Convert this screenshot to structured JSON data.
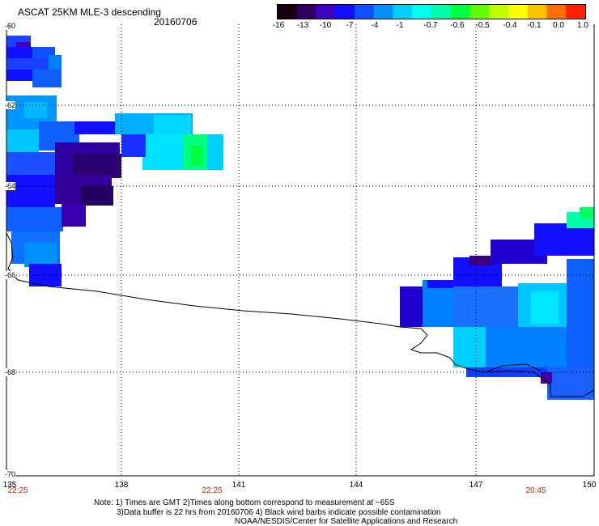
{
  "title": "ASCAT 25KM MLE-3 descending",
  "date": "20160706",
  "colorbar": {
    "labels": [
      "-16",
      "-13",
      "-10",
      "-7",
      "-4",
      "-1",
      "-0.7",
      "-0.6",
      "-0.5",
      "-0.4",
      "-0.1",
      "0.0",
      "1.0"
    ],
    "colors": [
      "#140010",
      "#320060",
      "#4000c0",
      "#1010ff",
      "#1050ff",
      "#0090ff",
      "#00d0ff",
      "#00ffee",
      "#00ffaa",
      "#00ff40",
      "#60ff00",
      "#c0ff00",
      "#ffff00",
      "#ffc000",
      "#ff7000",
      "#ff2000"
    ]
  },
  "axes": {
    "lat_labels": [
      "-60",
      "-62",
      "-64",
      "-66",
      "-68",
      "-70"
    ],
    "lon_labels": [
      "135",
      "138",
      "141",
      "144",
      "147",
      "150"
    ]
  },
  "time_labels": [
    "22:25",
    "22:25",
    "20:45"
  ],
  "notes": [
    "Note: 1) Times are GMT 2)Times along bottom correspond to measurement at ~65S",
    "3)Data buffer is 22 hrs from 20160706 4) Black wind barbs indicate possible contamination",
    "NOAA/NESDIS/Center for Satellite Applications and Research"
  ]
}
